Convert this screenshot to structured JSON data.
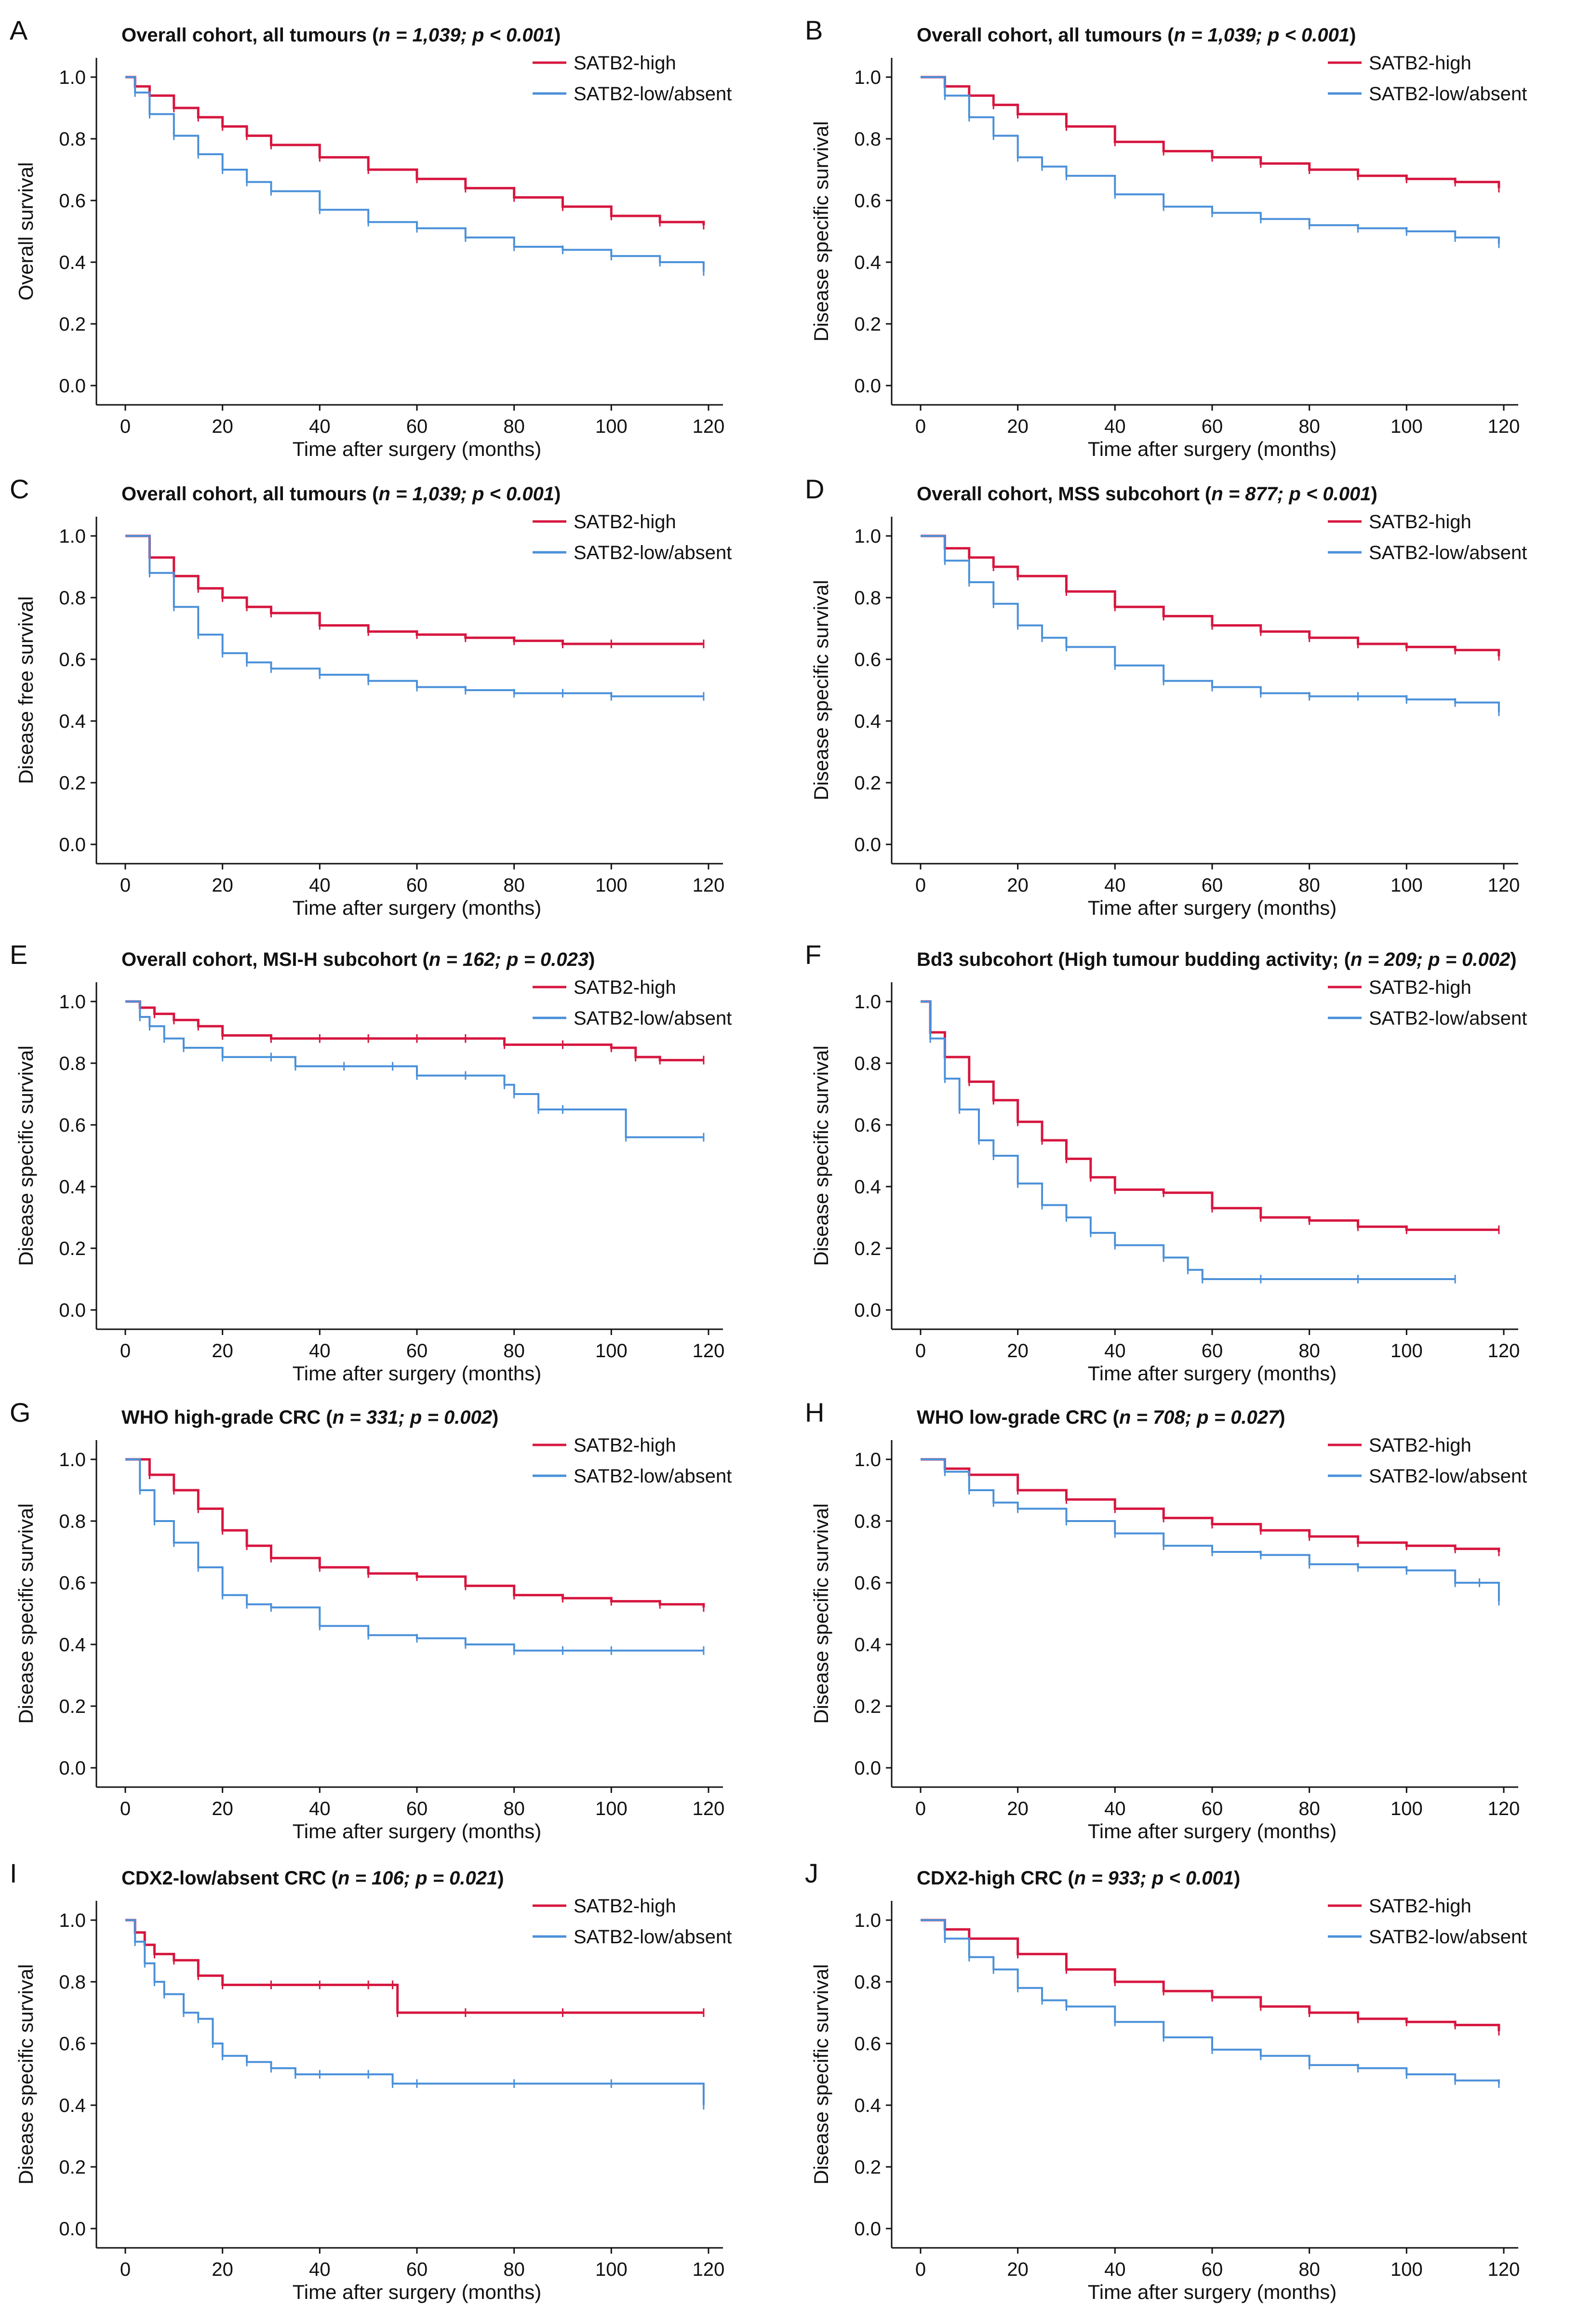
{
  "colors": {
    "high": "#d6163f",
    "low": "#4a90d9",
    "axis": "#111111"
  },
  "chart_data": [
    {
      "letter": "A",
      "type": "line",
      "title_plain": "Overall cohort, all tumours ",
      "title_italic": "n = 1,039; p < 0.001",
      "title_close": ")",
      "xlabel": "Time after surgery (months)",
      "ylabel": "Overall survival",
      "xlim": [
        0,
        120
      ],
      "ylim": [
        0,
        1
      ],
      "xticks": [
        "0",
        "20",
        "40",
        "60",
        "80",
        "100",
        "120"
      ],
      "yticks": [
        "0.0",
        "0.2",
        "0.4",
        "0.6",
        "0.8",
        "1.0"
      ],
      "series": [
        {
          "name": "SATB2-high",
          "x": [
            0,
            2,
            5,
            10,
            15,
            20,
            25,
            30,
            40,
            50,
            60,
            70,
            80,
            90,
            100,
            110,
            119
          ],
          "y": [
            1.0,
            0.97,
            0.94,
            0.9,
            0.87,
            0.84,
            0.81,
            0.78,
            0.74,
            0.7,
            0.67,
            0.64,
            0.61,
            0.58,
            0.55,
            0.53,
            0.52
          ]
        },
        {
          "name": "SATB2-low/absent",
          "x": [
            0,
            2,
            5,
            10,
            15,
            20,
            25,
            30,
            40,
            50,
            60,
            70,
            80,
            90,
            100,
            110,
            119
          ],
          "y": [
            1.0,
            0.95,
            0.88,
            0.81,
            0.75,
            0.7,
            0.66,
            0.63,
            0.57,
            0.53,
            0.51,
            0.48,
            0.45,
            0.44,
            0.42,
            0.4,
            0.37
          ]
        }
      ]
    },
    {
      "letter": "B",
      "type": "line",
      "title_plain": "Overall cohort, all tumours ",
      "title_italic": "n = 1,039; p < 0.001",
      "title_close": ")",
      "xlabel": "Time after surgery (months)",
      "ylabel": "Disease specific survival",
      "xlim": [
        0,
        120
      ],
      "ylim": [
        0,
        1
      ],
      "xticks": [
        "0",
        "20",
        "40",
        "60",
        "80",
        "100",
        "120"
      ],
      "yticks": [
        "0.0",
        "0.2",
        "0.4",
        "0.6",
        "0.8",
        "1.0"
      ],
      "series": [
        {
          "name": "SATB2-high",
          "x": [
            0,
            5,
            10,
            15,
            20,
            30,
            40,
            50,
            60,
            70,
            80,
            90,
            100,
            110,
            119
          ],
          "y": [
            1.0,
            0.97,
            0.94,
            0.91,
            0.88,
            0.84,
            0.79,
            0.76,
            0.74,
            0.72,
            0.7,
            0.68,
            0.67,
            0.66,
            0.64
          ]
        },
        {
          "name": "SATB2-low/absent",
          "x": [
            0,
            5,
            10,
            15,
            20,
            25,
            30,
            40,
            50,
            60,
            70,
            80,
            90,
            100,
            110,
            119
          ],
          "y": [
            1.0,
            0.94,
            0.87,
            0.81,
            0.74,
            0.71,
            0.68,
            0.62,
            0.58,
            0.56,
            0.54,
            0.52,
            0.51,
            0.5,
            0.48,
            0.46
          ]
        }
      ]
    },
    {
      "letter": "C",
      "type": "line",
      "title_plain": "Overall cohort, all tumours ",
      "title_italic": "n = 1,039; p < 0.001",
      "title_close": ")",
      "xlabel": "Time after surgery (months)",
      "ylabel": "Disease free survival",
      "xlim": [
        0,
        120
      ],
      "ylim": [
        0,
        1
      ],
      "xticks": [
        "0",
        "20",
        "40",
        "60",
        "80",
        "100",
        "120"
      ],
      "yticks": [
        "0.0",
        "0.2",
        "0.4",
        "0.6",
        "0.8",
        "1.0"
      ],
      "series": [
        {
          "name": "SATB2-high",
          "x": [
            0,
            5,
            10,
            15,
            20,
            25,
            30,
            40,
            50,
            60,
            70,
            80,
            90,
            100,
            119
          ],
          "y": [
            1.0,
            0.93,
            0.87,
            0.83,
            0.8,
            0.77,
            0.75,
            0.71,
            0.69,
            0.68,
            0.67,
            0.66,
            0.65,
            0.65,
            0.65
          ]
        },
        {
          "name": "SATB2-low/absent",
          "x": [
            0,
            5,
            10,
            15,
            20,
            25,
            30,
            40,
            50,
            60,
            70,
            80,
            90,
            100,
            119
          ],
          "y": [
            1.0,
            0.88,
            0.77,
            0.68,
            0.62,
            0.59,
            0.57,
            0.55,
            0.53,
            0.51,
            0.5,
            0.49,
            0.49,
            0.48,
            0.48
          ]
        }
      ]
    },
    {
      "letter": "D",
      "type": "line",
      "title_plain": "Overall cohort, MSS subcohort ",
      "title_italic": "n = 877; p < 0.001",
      "title_close": ")",
      "xlabel": "Time after surgery (months)",
      "ylabel": "Disease specific survival",
      "xlim": [
        0,
        120
      ],
      "ylim": [
        0,
        1
      ],
      "xticks": [
        "0",
        "20",
        "40",
        "60",
        "80",
        "100",
        "120"
      ],
      "yticks": [
        "0.0",
        "0.2",
        "0.4",
        "0.6",
        "0.8",
        "1.0"
      ],
      "series": [
        {
          "name": "SATB2-high",
          "x": [
            0,
            5,
            10,
            15,
            20,
            30,
            40,
            50,
            60,
            70,
            80,
            90,
            100,
            110,
            119
          ],
          "y": [
            1.0,
            0.96,
            0.93,
            0.9,
            0.87,
            0.82,
            0.77,
            0.74,
            0.71,
            0.69,
            0.67,
            0.65,
            0.64,
            0.63,
            0.61
          ]
        },
        {
          "name": "SATB2-low/absent",
          "x": [
            0,
            5,
            10,
            15,
            20,
            25,
            30,
            40,
            50,
            60,
            70,
            80,
            90,
            100,
            110,
            119
          ],
          "y": [
            1.0,
            0.92,
            0.85,
            0.78,
            0.71,
            0.67,
            0.64,
            0.58,
            0.53,
            0.51,
            0.49,
            0.48,
            0.48,
            0.47,
            0.46,
            0.43
          ]
        }
      ]
    },
    {
      "letter": "E",
      "type": "line",
      "title_plain": "Overall cohort, MSI-H subcohort ",
      "title_italic": "n = 162; p = 0.023",
      "title_close": ")",
      "xlabel": "Time after surgery (months)",
      "ylabel": "Disease specific survival",
      "xlim": [
        0,
        120
      ],
      "ylim": [
        0,
        1
      ],
      "xticks": [
        "0",
        "20",
        "40",
        "60",
        "80",
        "100",
        "120"
      ],
      "yticks": [
        "0.0",
        "0.2",
        "0.4",
        "0.6",
        "0.8",
        "1.0"
      ],
      "series": [
        {
          "name": "SATB2-high",
          "x": [
            0,
            3,
            6,
            10,
            15,
            20,
            30,
            40,
            50,
            60,
            70,
            78,
            90,
            100,
            105,
            110,
            119
          ],
          "y": [
            1.0,
            0.98,
            0.96,
            0.94,
            0.92,
            0.89,
            0.88,
            0.88,
            0.88,
            0.88,
            0.88,
            0.86,
            0.86,
            0.85,
            0.82,
            0.81,
            0.81
          ]
        },
        {
          "name": "SATB2-low/absent",
          "x": [
            0,
            3,
            5,
            8,
            12,
            20,
            30,
            35,
            45,
            55,
            60,
            70,
            78,
            80,
            85,
            90,
            103,
            119
          ],
          "y": [
            1.0,
            0.95,
            0.92,
            0.88,
            0.85,
            0.82,
            0.82,
            0.79,
            0.79,
            0.79,
            0.76,
            0.76,
            0.73,
            0.7,
            0.65,
            0.65,
            0.56,
            0.56
          ]
        }
      ]
    },
    {
      "letter": "F",
      "type": "line",
      "title_plain": "Bd3 subcohort (High tumour budding activity; ",
      "title_italic": "n = 209; p = 0.002",
      "title_close": ")",
      "xlabel": "Time after surgery (months)",
      "ylabel": "Disease specific survival",
      "xlim": [
        0,
        120
      ],
      "ylim": [
        0,
        1
      ],
      "xticks": [
        "0",
        "20",
        "40",
        "60",
        "80",
        "100",
        "120"
      ],
      "yticks": [
        "0.0",
        "0.2",
        "0.4",
        "0.6",
        "0.8",
        "1.0"
      ],
      "series": [
        {
          "name": "SATB2-high",
          "x": [
            0,
            2,
            5,
            10,
            15,
            20,
            25,
            30,
            35,
            40,
            50,
            60,
            70,
            80,
            90,
            100,
            119
          ],
          "y": [
            1.0,
            0.9,
            0.82,
            0.74,
            0.68,
            0.61,
            0.55,
            0.49,
            0.43,
            0.39,
            0.38,
            0.33,
            0.3,
            0.29,
            0.27,
            0.26,
            0.26
          ]
        },
        {
          "name": "SATB2-low/absent",
          "x": [
            0,
            2,
            5,
            8,
            12,
            15,
            20,
            25,
            30,
            35,
            40,
            50,
            55,
            58,
            70,
            90,
            110
          ],
          "y": [
            1.0,
            0.88,
            0.75,
            0.65,
            0.55,
            0.5,
            0.41,
            0.34,
            0.3,
            0.25,
            0.21,
            0.17,
            0.13,
            0.1,
            0.1,
            0.1,
            0.1
          ]
        }
      ]
    },
    {
      "letter": "G",
      "type": "line",
      "title_plain": "WHO high-grade CRC ",
      "title_italic": "n = 331; p = 0.002",
      "title_close": ")",
      "xlabel": "Time after surgery (months)",
      "ylabel": "Disease specific survival",
      "xlim": [
        0,
        120
      ],
      "ylim": [
        0,
        1
      ],
      "xticks": [
        "0",
        "20",
        "40",
        "60",
        "80",
        "100",
        "120"
      ],
      "yticks": [
        "0.0",
        "0.2",
        "0.4",
        "0.6",
        "0.8",
        "1.0"
      ],
      "series": [
        {
          "name": "SATB2-high",
          "x": [
            0,
            5,
            10,
            15,
            20,
            25,
            30,
            40,
            50,
            60,
            70,
            80,
            90,
            100,
            110,
            119
          ],
          "y": [
            1.0,
            0.95,
            0.9,
            0.84,
            0.77,
            0.72,
            0.68,
            0.65,
            0.63,
            0.62,
            0.59,
            0.56,
            0.55,
            0.54,
            0.53,
            0.52
          ]
        },
        {
          "name": "SATB2-low/absent",
          "x": [
            0,
            3,
            6,
            10,
            15,
            20,
            25,
            30,
            40,
            50,
            60,
            70,
            80,
            90,
            100,
            119
          ],
          "y": [
            1.0,
            0.9,
            0.8,
            0.73,
            0.65,
            0.56,
            0.53,
            0.52,
            0.46,
            0.43,
            0.42,
            0.4,
            0.38,
            0.38,
            0.38,
            0.38
          ]
        }
      ]
    },
    {
      "letter": "H",
      "type": "line",
      "title_plain": "WHO low-grade CRC ",
      "title_italic": "n = 708; p = 0.027",
      "title_close": ")",
      "xlabel": "Time after surgery (months)",
      "ylabel": "Disease specific survival",
      "xlim": [
        0,
        120
      ],
      "ylim": [
        0,
        1
      ],
      "xticks": [
        "0",
        "20",
        "40",
        "60",
        "80",
        "100",
        "120"
      ],
      "yticks": [
        "0.0",
        "0.2",
        "0.4",
        "0.6",
        "0.8",
        "1.0"
      ],
      "series": [
        {
          "name": "SATB2-high",
          "x": [
            0,
            5,
            10,
            20,
            30,
            40,
            50,
            60,
            70,
            80,
            90,
            100,
            110,
            119
          ],
          "y": [
            1.0,
            0.97,
            0.95,
            0.9,
            0.87,
            0.84,
            0.81,
            0.79,
            0.77,
            0.75,
            0.73,
            0.72,
            0.71,
            0.7
          ]
        },
        {
          "name": "SATB2-low/absent",
          "x": [
            0,
            5,
            10,
            15,
            20,
            30,
            40,
            50,
            60,
            70,
            80,
            90,
            100,
            110,
            115,
            119
          ],
          "y": [
            1.0,
            0.96,
            0.9,
            0.86,
            0.84,
            0.8,
            0.76,
            0.72,
            0.7,
            0.69,
            0.66,
            0.65,
            0.64,
            0.6,
            0.6,
            0.54
          ]
        }
      ]
    },
    {
      "letter": "I",
      "type": "line",
      "title_plain": "CDX2-low/absent CRC ",
      "title_italic": "n = 106; p = 0.021",
      "title_close": ")",
      "xlabel": "Time after surgery (months)",
      "ylabel": "Disease specific survival",
      "xlim": [
        0,
        120
      ],
      "ylim": [
        0,
        1
      ],
      "xticks": [
        "0",
        "20",
        "40",
        "60",
        "80",
        "100",
        "120"
      ],
      "yticks": [
        "0.0",
        "0.2",
        "0.4",
        "0.6",
        "0.8",
        "1.0"
      ],
      "series": [
        {
          "name": "SATB2-high",
          "x": [
            0,
            2,
            4,
            6,
            10,
            15,
            20,
            30,
            40,
            50,
            55,
            56,
            70,
            90,
            119
          ],
          "y": [
            1.0,
            0.96,
            0.92,
            0.89,
            0.87,
            0.82,
            0.79,
            0.79,
            0.79,
            0.79,
            0.79,
            0.7,
            0.7,
            0.7,
            0.7
          ]
        },
        {
          "name": "SATB2-low/absent",
          "x": [
            0,
            2,
            4,
            6,
            8,
            12,
            15,
            18,
            20,
            25,
            30,
            35,
            40,
            50,
            55,
            60,
            80,
            100,
            119
          ],
          "y": [
            1.0,
            0.93,
            0.86,
            0.8,
            0.76,
            0.7,
            0.68,
            0.6,
            0.56,
            0.54,
            0.52,
            0.5,
            0.5,
            0.5,
            0.47,
            0.47,
            0.47,
            0.47,
            0.4
          ]
        }
      ]
    },
    {
      "letter": "J",
      "type": "line",
      "title_plain": "CDX2-high CRC ",
      "title_italic": "n = 933; p < 0.001",
      "title_close": ")",
      "xlabel": "Time after surgery (months)",
      "ylabel": "Disease specific survival",
      "xlim": [
        0,
        120
      ],
      "ylim": [
        0,
        1
      ],
      "xticks": [
        "0",
        "20",
        "40",
        "60",
        "80",
        "100",
        "120"
      ],
      "yticks": [
        "0.0",
        "0.2",
        "0.4",
        "0.6",
        "0.8",
        "1.0"
      ],
      "series": [
        {
          "name": "SATB2-high",
          "x": [
            0,
            5,
            10,
            20,
            30,
            40,
            50,
            60,
            70,
            80,
            90,
            100,
            110,
            119
          ],
          "y": [
            1.0,
            0.97,
            0.94,
            0.89,
            0.84,
            0.8,
            0.77,
            0.75,
            0.72,
            0.7,
            0.68,
            0.67,
            0.66,
            0.64
          ]
        },
        {
          "name": "SATB2-low/absent",
          "x": [
            0,
            5,
            10,
            15,
            20,
            25,
            30,
            40,
            50,
            60,
            70,
            80,
            90,
            100,
            110,
            119
          ],
          "y": [
            1.0,
            0.94,
            0.88,
            0.84,
            0.78,
            0.74,
            0.72,
            0.67,
            0.62,
            0.58,
            0.56,
            0.53,
            0.52,
            0.5,
            0.48,
            0.47
          ]
        }
      ]
    }
  ]
}
